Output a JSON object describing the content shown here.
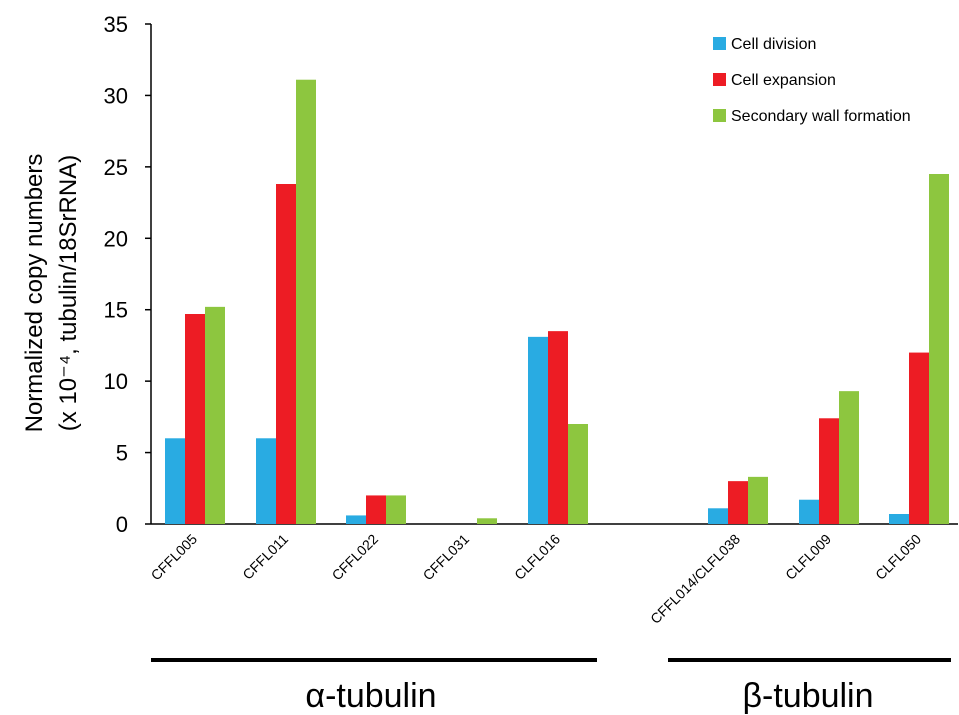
{
  "chart_data": {
    "type": "bar",
    "ylabel_line1": "Normalized copy numbers",
    "ylabel_line2": "(x 10⁻⁴, tubulin/18SrRNA)",
    "ylim": [
      0,
      35
    ],
    "yticks": [
      "0",
      "5",
      "10",
      "15",
      "20",
      "25",
      "30",
      "35"
    ],
    "grid": false,
    "legend_position": "top-right",
    "categories": [
      "CFFL005",
      "CFFL011",
      "CFFL022",
      "CFFL031",
      "CLFL016",
      "CFFL014/CLFL038",
      "CLFL009",
      "CLFL050"
    ],
    "series": [
      {
        "name": "Cell division",
        "color": "#29abe2",
        "values": [
          6.0,
          6.0,
          0.6,
          0,
          13.1,
          1.1,
          1.7,
          0.7
        ]
      },
      {
        "name": "Cell expansion",
        "color": "#ed1c24",
        "values": [
          14.7,
          23.8,
          2.0,
          0,
          13.5,
          3.0,
          7.4,
          12.0
        ]
      },
      {
        "name": "Secondary wall formation",
        "color": "#8dc63f",
        "values": [
          15.2,
          31.1,
          2.0,
          0.4,
          7.0,
          3.3,
          9.3,
          24.5
        ]
      }
    ],
    "groups": [
      {
        "label": "α-tubulin"
      },
      {
        "label": "β-tubulin"
      }
    ]
  }
}
